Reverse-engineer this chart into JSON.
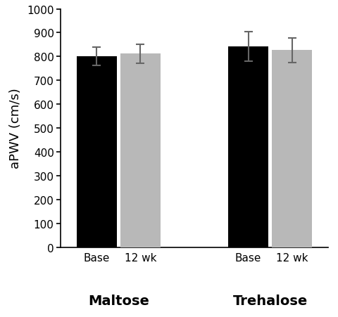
{
  "groups": [
    "Maltose",
    "Trehalose"
  ],
  "conditions": [
    "Base",
    "12 wk"
  ],
  "values": {
    "Maltose": [
      800,
      812
    ],
    "Trehalose": [
      843,
      827
    ]
  },
  "errors": {
    "Maltose": [
      38,
      40
    ],
    "Trehalose": [
      62,
      52
    ]
  },
  "bar_colors": [
    "#000000",
    "#b8b8b8"
  ],
  "ylabel": "aPWV (cm/s)",
  "ylim": [
    0,
    1000
  ],
  "yticks": [
    0,
    100,
    200,
    300,
    400,
    500,
    600,
    700,
    800,
    900,
    1000
  ],
  "group_centers": [
    1.0,
    2.6
  ],
  "bar_width": 0.42,
  "bar_gap": 0.04,
  "group_label_fontsize": 14,
  "condition_label_fontsize": 11,
  "ylabel_fontsize": 13,
  "ytick_fontsize": 11,
  "error_capsize": 4,
  "error_color": "#666666",
  "error_linewidth": 1.5,
  "figsize": [
    4.8,
    4.52
  ],
  "dpi": 100
}
